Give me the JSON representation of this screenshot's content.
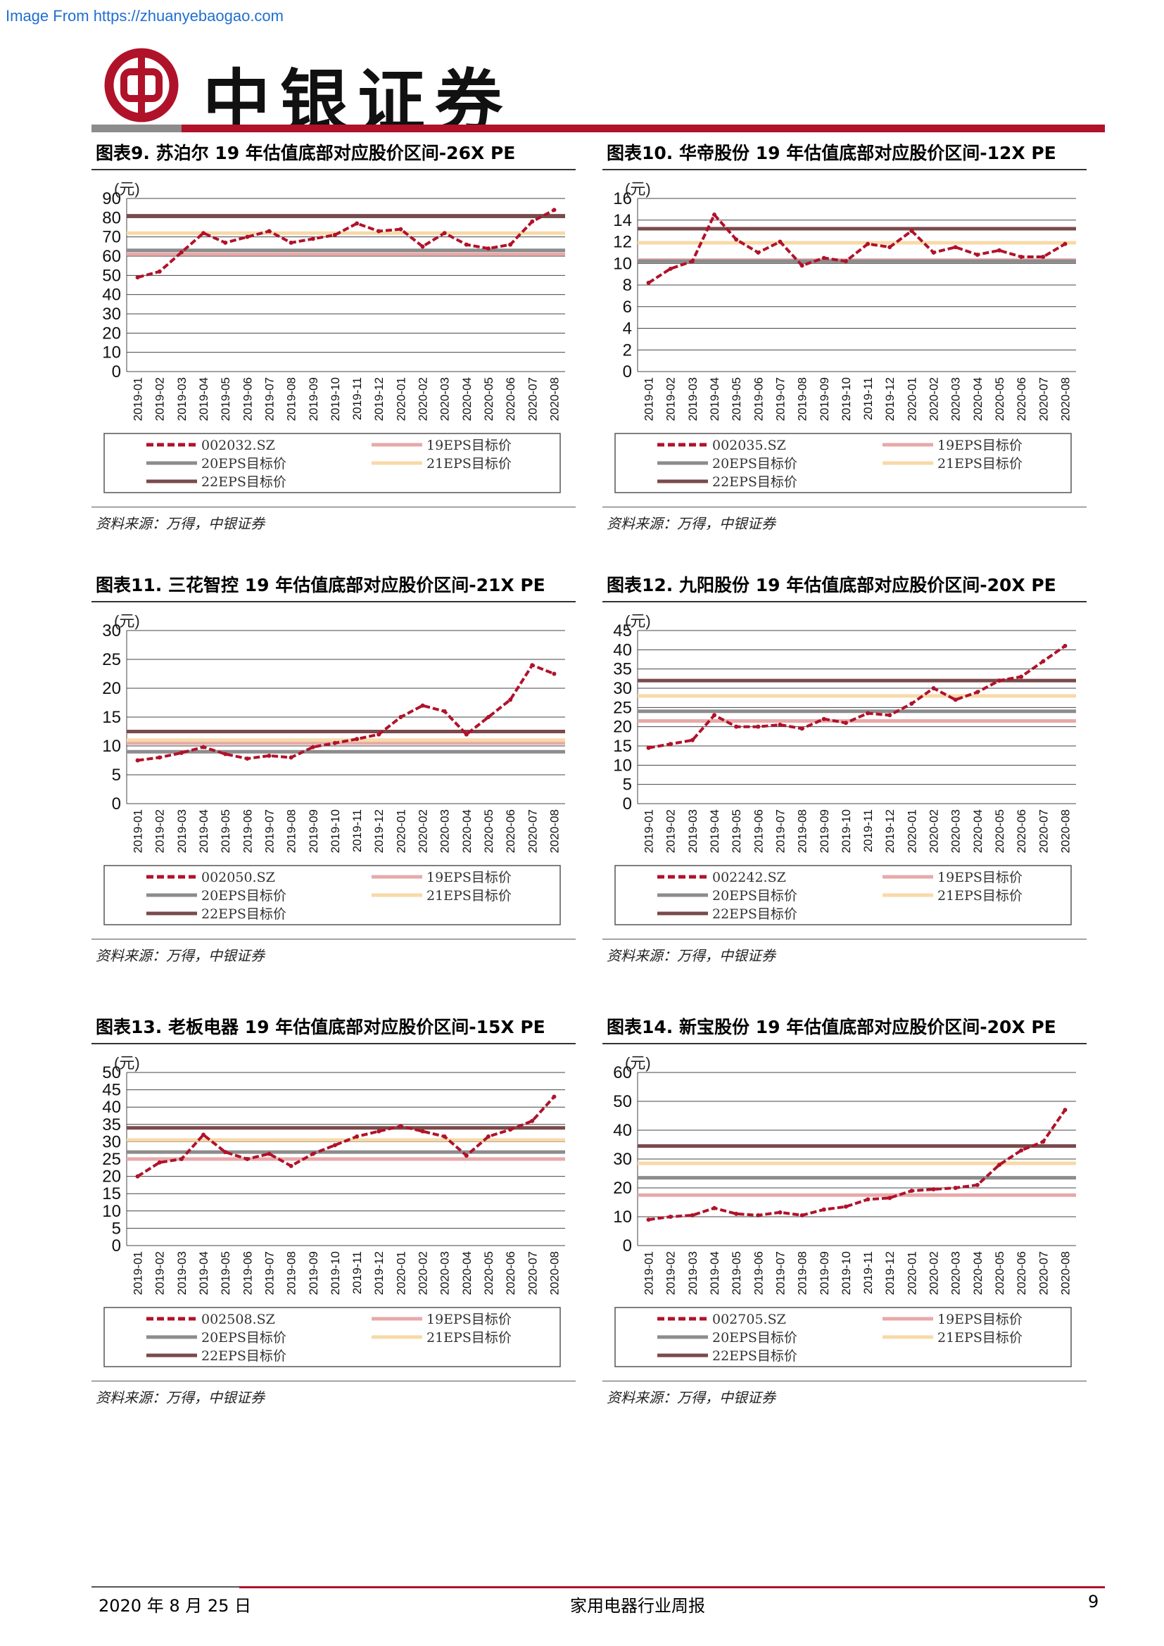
{
  "watermark": "Image From https://zhuanyebaogao.com",
  "brand": "中银证券",
  "colors": {
    "brand_red": "#b0122a",
    "price_line": "#b0122a",
    "eps19": "#e8a9a9",
    "eps20": "#8c8c8c",
    "eps21": "#f7d9a8",
    "eps22": "#7a4a4a"
  },
  "footer": {
    "date": "2020 年 8 月 25 日",
    "center": "家用电器行业周报",
    "page": "9"
  },
  "panels": [
    {
      "title": "图表9. 苏泊尔 19 年估值底部对应股价区间-26X PE",
      "source": "资料来源：万得，中银证券"
    },
    {
      "title": "图表10. 华帝股份 19 年估值底部对应股价区间-12X PE",
      "source": "资料来源：万得，中银证券"
    },
    {
      "title": "图表11. 三花智控 19 年估值底部对应股价区间-21X PE",
      "source": "资料来源：万得，中银证券"
    },
    {
      "title": "图表12. 九阳股份 19 年估值底部对应股价区间-20X PE",
      "source": "资料来源：万得，中银证券"
    },
    {
      "title": "图表13. 老板电器 19 年估值底部对应股价区间-15X PE",
      "source": "资料来源：万得，中银证券"
    },
    {
      "title": "图表14. 新宝股份 19 年估值底部对应股价区间-20X PE",
      "source": "资料来源：万得，中银证券"
    }
  ],
  "chart_data": [
    {
      "type": "line",
      "unit_label": "(元)",
      "ylim": [
        0,
        90
      ],
      "yticks": [
        0,
        10,
        20,
        30,
        40,
        50,
        60,
        70,
        80,
        90
      ],
      "categories": [
        "2019-01",
        "2019-02",
        "2019-03",
        "2019-04",
        "2019-05",
        "2019-06",
        "2019-07",
        "2019-08",
        "2019-09",
        "2019-10",
        "2019-11",
        "2019-12",
        "2020-01",
        "2020-02",
        "2020-03",
        "2020-04",
        "2020-05",
        "2020-06",
        "2020-07",
        "2020-08"
      ],
      "series": [
        {
          "name": "002032.SZ",
          "values": [
            49,
            52,
            62,
            72,
            67,
            70,
            73,
            67,
            69,
            71,
            77,
            73,
            74,
            65,
            72,
            66,
            64,
            66,
            78,
            84
          ]
        }
      ],
      "reference_lines": [
        {
          "name": "19EPS目标价",
          "value": 61
        },
        {
          "name": "20EPS目标价",
          "value": 63
        },
        {
          "name": "21EPS目标价",
          "value": 72
        },
        {
          "name": "22EPS目标价",
          "value": 81
        }
      ],
      "grid": true,
      "legend": "bottom"
    },
    {
      "type": "line",
      "unit_label": "(元)",
      "ylim": [
        0,
        16
      ],
      "yticks": [
        0,
        2,
        4,
        6,
        8,
        10,
        12,
        14,
        16
      ],
      "categories": [
        "2019-01",
        "2019-02",
        "2019-03",
        "2019-04",
        "2019-05",
        "2019-06",
        "2019-07",
        "2019-08",
        "2019-09",
        "2019-10",
        "2019-11",
        "2019-12",
        "2020-01",
        "2020-02",
        "2020-03",
        "2020-04",
        "2020-05",
        "2020-06",
        "2020-07",
        "2020-08"
      ],
      "series": [
        {
          "name": "002035.SZ",
          "values": [
            8.2,
            9.5,
            10.2,
            14.5,
            12.2,
            11.0,
            12.0,
            9.8,
            10.5,
            10.2,
            11.8,
            11.5,
            13.0,
            11.0,
            11.5,
            10.8,
            11.2,
            10.6,
            10.6,
            11.8
          ]
        }
      ],
      "reference_lines": [
        {
          "name": "19EPS目标价",
          "value": 10.3
        },
        {
          "name": "20EPS目标价",
          "value": 10.2
        },
        {
          "name": "21EPS目标价",
          "value": 11.9
        },
        {
          "name": "22EPS目标价",
          "value": 13.2
        }
      ],
      "grid": true,
      "legend": "bottom"
    },
    {
      "type": "line",
      "unit_label": "(元)",
      "ylim": [
        0,
        30
      ],
      "yticks": [
        0,
        5,
        10,
        15,
        20,
        25,
        30
      ],
      "categories": [
        "2019-01",
        "2019-02",
        "2019-03",
        "2019-04",
        "2019-05",
        "2019-06",
        "2019-07",
        "2019-08",
        "2019-09",
        "2019-10",
        "2019-11",
        "2019-12",
        "2020-01",
        "2020-02",
        "2020-03",
        "2020-04",
        "2020-05",
        "2020-06",
        "2020-07",
        "2020-08"
      ],
      "series": [
        {
          "name": "002050.SZ",
          "values": [
            7.5,
            8.0,
            8.8,
            9.8,
            8.6,
            7.8,
            8.3,
            8.0,
            9.8,
            10.5,
            11.2,
            12.0,
            15.0,
            17.0,
            16.0,
            12.0,
            15.0,
            18.0,
            24.0,
            22.5
          ]
        }
      ],
      "reference_lines": [
        {
          "name": "19EPS目标价",
          "value": 10.5
        },
        {
          "name": "20EPS目标价",
          "value": 9.0
        },
        {
          "name": "21EPS目标价",
          "value": 11.0
        },
        {
          "name": "22EPS目标价",
          "value": 12.5
        }
      ],
      "grid": true,
      "legend": "bottom"
    },
    {
      "type": "line",
      "unit_label": "(元)",
      "ylim": [
        0,
        45
      ],
      "yticks": [
        0,
        5,
        10,
        15,
        20,
        25,
        30,
        35,
        40,
        45
      ],
      "categories": [
        "2019-01",
        "2019-02",
        "2019-03",
        "2019-04",
        "2019-05",
        "2019-06",
        "2019-07",
        "2019-08",
        "2019-09",
        "2019-10",
        "2019-11",
        "2019-12",
        "2020-01",
        "2020-02",
        "2020-03",
        "2020-04",
        "2020-05",
        "2020-06",
        "2020-07",
        "2020-08"
      ],
      "series": [
        {
          "name": "002242.SZ",
          "values": [
            14.5,
            15.5,
            16.5,
            23.0,
            20.0,
            20.0,
            20.5,
            19.5,
            22.0,
            21.0,
            23.5,
            23.0,
            26.0,
            30.0,
            27.0,
            29.0,
            32.0,
            33.0,
            37.0,
            41.0
          ]
        }
      ],
      "reference_lines": [
        {
          "name": "19EPS目标价",
          "value": 21.5
        },
        {
          "name": "20EPS目标价",
          "value": 24.0
        },
        {
          "name": "21EPS目标价",
          "value": 28.0
        },
        {
          "name": "22EPS目标价",
          "value": 32.0
        }
      ],
      "grid": true,
      "legend": "bottom"
    },
    {
      "type": "line",
      "unit_label": "(元)",
      "ylim": [
        0,
        50
      ],
      "yticks": [
        0,
        5,
        10,
        15,
        20,
        25,
        30,
        35,
        40,
        45,
        50
      ],
      "categories": [
        "2019-01",
        "2019-02",
        "2019-03",
        "2019-04",
        "2019-05",
        "2019-06",
        "2019-07",
        "2019-08",
        "2019-09",
        "2019-10",
        "2019-11",
        "2019-12",
        "2020-01",
        "2020-02",
        "2020-03",
        "2020-04",
        "2020-05",
        "2020-06",
        "2020-07",
        "2020-08"
      ],
      "series": [
        {
          "name": "002508.SZ",
          "values": [
            20.0,
            24.0,
            25.0,
            32.0,
            27.0,
            25.0,
            26.5,
            23.0,
            26.5,
            29.0,
            31.5,
            33.0,
            34.5,
            33.0,
            31.5,
            26.0,
            31.5,
            33.5,
            36.0,
            43.0
          ]
        }
      ],
      "reference_lines": [
        {
          "name": "19EPS目标价",
          "value": 25.0
        },
        {
          "name": "20EPS目标价",
          "value": 27.0
        },
        {
          "name": "21EPS目标价",
          "value": 30.5
        },
        {
          "name": "22EPS目标价",
          "value": 34.0
        }
      ],
      "grid": true,
      "legend": "bottom"
    },
    {
      "type": "line",
      "unit_label": "(元)",
      "ylim": [
        0,
        60
      ],
      "yticks": [
        0,
        10,
        20,
        30,
        40,
        50,
        60
      ],
      "categories": [
        "2019-01",
        "2019-02",
        "2019-03",
        "2019-04",
        "2019-05",
        "2019-06",
        "2019-07",
        "2019-08",
        "2019-09",
        "2019-10",
        "2019-11",
        "2019-12",
        "2020-01",
        "2020-02",
        "2020-03",
        "2020-04",
        "2020-05",
        "2020-06",
        "2020-07",
        "2020-08"
      ],
      "series": [
        {
          "name": "002705.SZ",
          "values": [
            9.0,
            10.0,
            10.5,
            13.0,
            11.0,
            10.5,
            11.5,
            10.5,
            12.5,
            13.5,
            16.0,
            16.5,
            19.0,
            19.5,
            20.0,
            21.0,
            28.0,
            33.0,
            36.0,
            47.0
          ]
        }
      ],
      "reference_lines": [
        {
          "name": "19EPS目标价",
          "value": 17.5
        },
        {
          "name": "20EPS目标价",
          "value": 23.5
        },
        {
          "name": "21EPS目标价",
          "value": 28.5
        },
        {
          "name": "22EPS目标价",
          "value": 34.5
        }
      ],
      "grid": true,
      "legend": "bottom"
    }
  ]
}
